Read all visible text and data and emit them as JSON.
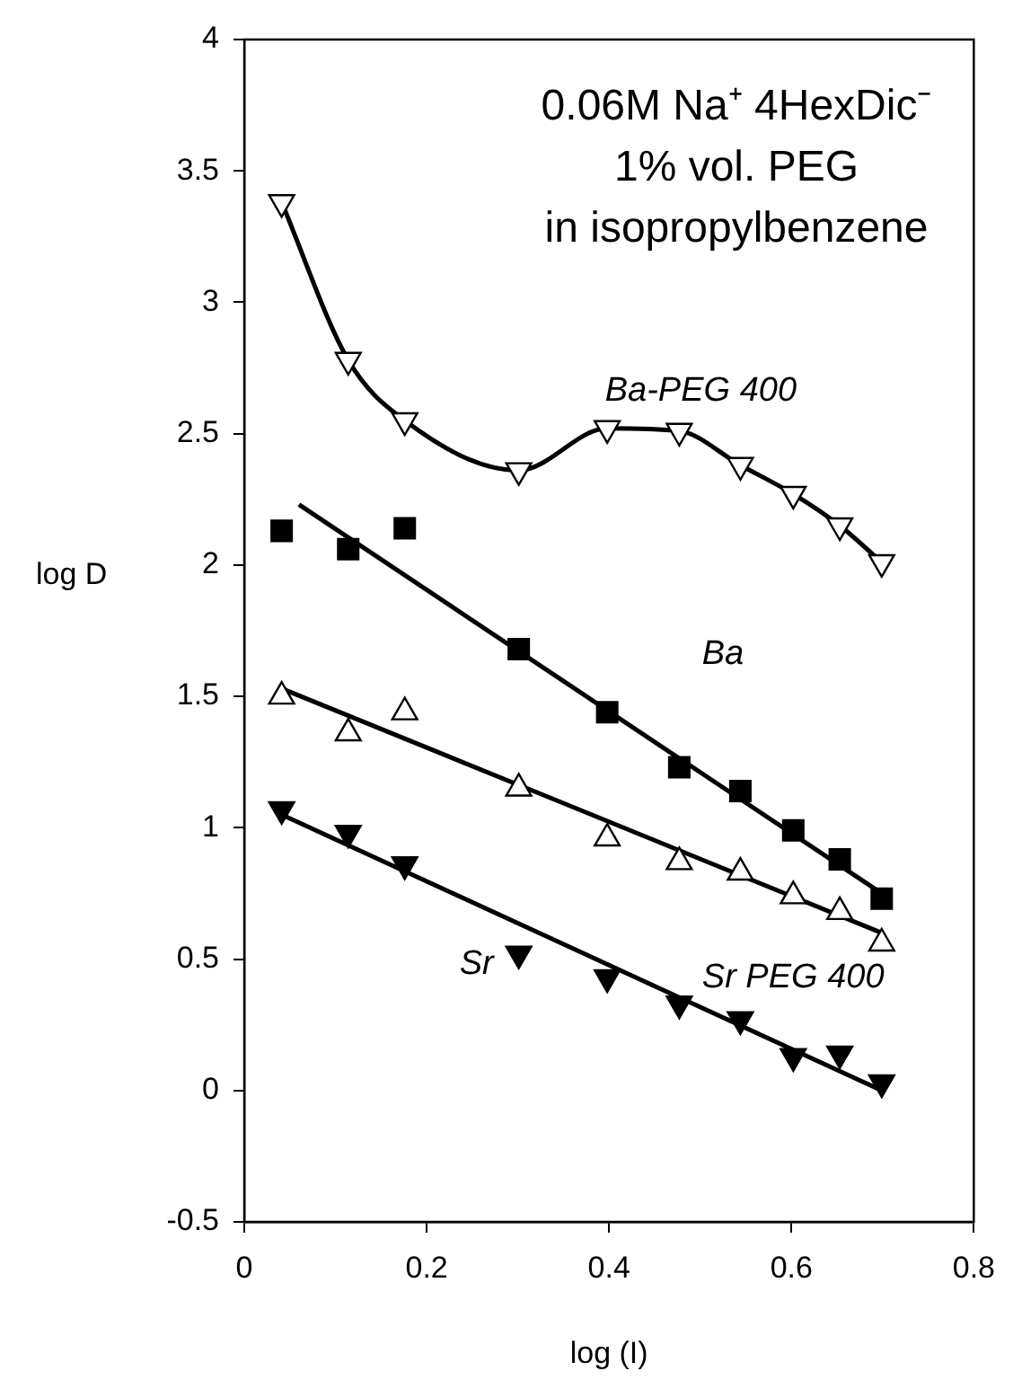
{
  "chart_data": {
    "type": "scatter",
    "xlabel": "log (I)",
    "ylabel": "log D",
    "annotations": [
      "0.06M Na⁺ 4HexDic⁻",
      "1% vol. PEG",
      "in isopropylbenzene"
    ],
    "x": [
      0.041,
      0.114,
      0.176,
      0.301,
      0.398,
      0.477,
      0.544,
      0.602,
      0.653,
      0.699
    ],
    "xlim": [
      0,
      0.8
    ],
    "xticks": [
      0,
      0.2,
      0.4,
      0.6,
      0.8
    ],
    "ylim": [
      -0.5,
      4
    ],
    "yticks": [
      -0.5,
      0,
      0.5,
      1,
      1.5,
      2,
      2.5,
      3,
      3.5,
      4
    ],
    "grid": false,
    "legend": false,
    "series": [
      {
        "name": "Ba-PEG 400",
        "type": "line",
        "marker": "triangle",
        "color": "#000000",
        "values": [
          3.38,
          2.78,
          2.55,
          2.36,
          2.52,
          2.51,
          2.38,
          2.27,
          2.15,
          2.01
        ]
      },
      {
        "name": "Ba",
        "marker": "square",
        "color": "#000000",
        "values": [
          2.13,
          2.06,
          2.14,
          1.68,
          1.44,
          1.23,
          1.14,
          0.99,
          0.88,
          0.73
        ]
      },
      {
        "name": "Sr PEG 400",
        "marker": "triangle",
        "color": "#000000",
        "values": [
          1.5,
          1.36,
          1.44,
          1.15,
          0.96,
          0.87,
          0.83,
          0.74,
          0.68,
          0.56
        ]
      },
      {
        "name": "Sr",
        "marker": "triangle",
        "color": "#000000",
        "values": [
          1.07,
          0.98,
          0.86,
          0.52,
          0.43,
          0.33,
          0.27,
          0.13,
          0.14,
          0.03
        ]
      },
      {
        "type": "line",
        "marker": "none",
        "color": "#000000",
        "x": [
          0.06,
          0.699
        ],
        "values": [
          2.23,
          0.75
        ]
      },
      {
        "type": "line",
        "marker": "none",
        "color": "#000000",
        "x": [
          0.041,
          0.699
        ],
        "values": [
          1.53,
          0.6
        ]
      },
      {
        "type": "line",
        "marker": "none",
        "color": "#000000",
        "x": [
          0.041,
          0.699
        ],
        "values": [
          1.05,
          0.0
        ]
      }
    ]
  }
}
